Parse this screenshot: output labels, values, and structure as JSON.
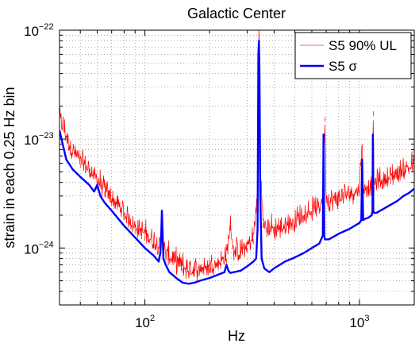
{
  "chart_data": {
    "type": "line",
    "title": "Galactic Center",
    "xlabel": "Hz",
    "ylabel": "strain in each 0.25 Hz bin",
    "xscale": "log",
    "yscale": "log",
    "xlim": [
      40,
      1800
    ],
    "ylim": [
      3e-25,
      1e-22
    ],
    "x_ticks": [
      {
        "value": 100,
        "base": "10",
        "exp": "2"
      },
      {
        "value": 1000,
        "base": "10",
        "exp": "3"
      }
    ],
    "y_ticks": [
      {
        "value": 1e-24,
        "base": "10",
        "exp": "−24"
      },
      {
        "value": 1e-23,
        "base": "10",
        "exp": "−23"
      },
      {
        "value": 1e-22,
        "base": "10",
        "exp": "−22"
      }
    ],
    "grid": true,
    "legend_position": "top-right",
    "series": [
      {
        "name": "S5 90% UL",
        "color": "#ff0000",
        "style": "noisy thin line",
        "x": [
          40,
          45,
          50,
          55,
          60,
          65,
          70,
          80,
          90,
          100,
          110,
          118,
          120,
          122,
          130,
          140,
          150,
          160,
          170,
          180,
          200,
          220,
          240,
          250,
          260,
          280,
          300,
          320,
          335,
          340,
          345,
          355,
          370,
          380,
          400,
          450,
          500,
          550,
          600,
          650,
          680,
          690,
          700,
          720,
          800,
          900,
          1000,
          1030,
          1040,
          1060,
          1100,
          1150,
          1160,
          1170,
          1200,
          1300,
          1400,
          1500,
          1600,
          1700,
          1800
        ],
        "y": [
          1.5e-23,
          8e-24,
          6e-24,
          5e-24,
          4e-24,
          3.3e-24,
          2.7e-24,
          2e-24,
          1.5e-24,
          1.3e-24,
          1.1e-24,
          1e-24,
          2.2e-24,
          9e-25,
          8e-25,
          7e-25,
          6.5e-25,
          6e-25,
          6e-25,
          6.2e-25,
          6.5e-25,
          7e-25,
          8e-25,
          1.6e-24,
          8.5e-25,
          9e-25,
          1e-24,
          1.2e-24,
          3e-24,
          1.2e-22,
          5e-24,
          1.7e-24,
          1.4e-24,
          1.5e-24,
          1.4e-24,
          1.5e-24,
          1.7e-24,
          1.9e-24,
          2.1e-24,
          2.3e-24,
          3e-24,
          1.6e-23,
          3e-24,
          2.5e-24,
          2.7e-24,
          3e-24,
          3.3e-24,
          9e-24,
          3.3e-24,
          3.5e-24,
          3.5e-24,
          3.6e-24,
          1.8e-23,
          3.6e-24,
          3.8e-24,
          4e-24,
          4.3e-24,
          4.6e-24,
          5e-24,
          5.3e-24,
          5.5e-24
        ]
      },
      {
        "name": "S5 σ",
        "color": "#0000ff",
        "style": "thick line",
        "x": [
          40,
          43,
          46,
          50,
          55,
          58,
          60,
          62,
          65,
          70,
          80,
          90,
          100,
          110,
          116,
          118,
          119,
          120,
          121,
          122,
          125,
          130,
          140,
          150,
          160,
          170,
          180,
          200,
          220,
          235,
          240,
          245,
          250,
          260,
          280,
          300,
          320,
          330,
          335,
          338,
          340,
          342,
          345,
          350,
          360,
          380,
          400,
          450,
          500,
          550,
          600,
          650,
          675,
          680,
          685,
          690,
          700,
          720,
          800,
          900,
          1000,
          1020,
          1030,
          1040,
          1060,
          1100,
          1140,
          1150,
          1155,
          1160,
          1170,
          1200,
          1300,
          1400,
          1500,
          1600,
          1700,
          1800
        ],
        "y": [
          1.2e-23,
          6.5e-24,
          5.3e-24,
          4.5e-24,
          3.8e-24,
          3.3e-24,
          3.8e-24,
          3e-24,
          2.6e-24,
          2.2e-24,
          1.6e-24,
          1.25e-24,
          1e-24,
          8.5e-25,
          7.5e-25,
          9e-25,
          1.2e-24,
          2.2e-24,
          1.3e-24,
          8e-25,
          7e-25,
          6e-25,
          5.3e-25,
          4.8e-25,
          4.7e-25,
          4.8e-25,
          5e-25,
          5.3e-25,
          5.7e-25,
          6e-25,
          7e-25,
          6.2e-25,
          5.9e-25,
          6e-25,
          6.2e-25,
          6.8e-25,
          7.5e-25,
          8e-25,
          1.5e-24,
          6e-23,
          8e-23,
          4e-23,
          3e-24,
          8e-25,
          6.5e-25,
          6e-25,
          6.5e-25,
          7.5e-25,
          8.2e-25,
          9e-25,
          1e-24,
          1.1e-24,
          1.3e-24,
          1.1e-23,
          1.3e-24,
          1.2e-24,
          1.2e-24,
          1.2e-24,
          1.35e-24,
          1.5e-24,
          1.7e-24,
          1.8e-24,
          6.5e-24,
          1.8e-24,
          1.85e-24,
          1.9e-24,
          2e-24,
          2.2e-24,
          1.1e-23,
          2.2e-24,
          2.1e-24,
          2.1e-24,
          2.3e-24,
          2.5e-24,
          2.7e-24,
          3e-24,
          3.2e-24,
          3.5e-24
        ]
      }
    ]
  }
}
